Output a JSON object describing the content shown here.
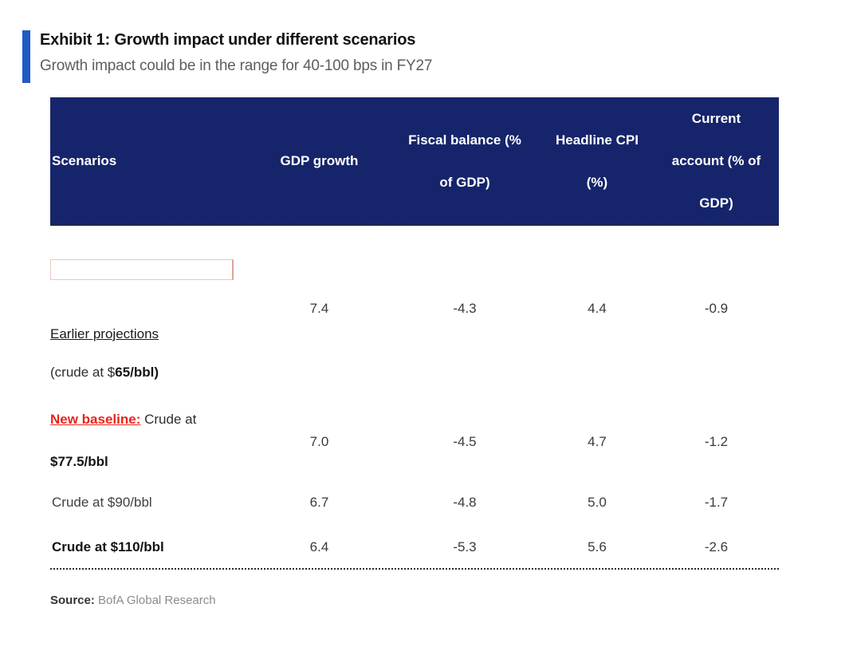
{
  "exhibit": {
    "title": "Exhibit 1: Growth impact under different scenarios",
    "subtitle": "Growth impact could be in the range for 40-100 bps in FY27"
  },
  "colors": {
    "header_bg": "#16256b",
    "accent_bar": "#1f5bc4",
    "highlight_red": "#e8251c",
    "empty_box_border": "#eac7bd"
  },
  "table": {
    "columns": [
      {
        "label": "Scenarios",
        "lines": [
          "Scenarios"
        ]
      },
      {
        "label": "GDP growth",
        "lines": [
          "GDP growth"
        ]
      },
      {
        "label": "Fiscal balance (% of GDP)",
        "lines": [
          "Fiscal balance (%",
          "of GDP)"
        ]
      },
      {
        "label": "Headline CPI (%)",
        "lines": [
          "Headline CPI",
          "(%)"
        ]
      },
      {
        "label": "Current account (% of GDP)",
        "lines": [
          "Current",
          "account (% of",
          "GDP)"
        ]
      }
    ],
    "rows": [
      {
        "scenario": {
          "line1": "Earlier projections",
          "line2_normal": "(crude at $",
          "line2_bold": "65/bbl)"
        },
        "values": {
          "gdp": "7.4",
          "fiscal": "-4.3",
          "cpi": "4.4",
          "current": "-0.9"
        }
      },
      {
        "scenario": {
          "highlight": "New baseline:",
          "line1_rest": " Crude at",
          "line2_bold": "$77.5/bbl"
        },
        "values": {
          "gdp": "7.0",
          "fiscal": "-4.5",
          "cpi": "4.7",
          "current": "-1.2"
        }
      },
      {
        "scenario": {
          "line1": "Crude at $90/bbl"
        },
        "values": {
          "gdp": "6.7",
          "fiscal": "-4.8",
          "cpi": "5.0",
          "current": "-1.7"
        }
      },
      {
        "scenario": {
          "line1": "Crude at $110/bbl"
        },
        "values": {
          "gdp": "6.4",
          "fiscal": "-5.3",
          "cpi": "5.6",
          "current": "-2.6"
        }
      }
    ]
  },
  "source": {
    "label": "Source:",
    "text": " BofA Global Research"
  }
}
